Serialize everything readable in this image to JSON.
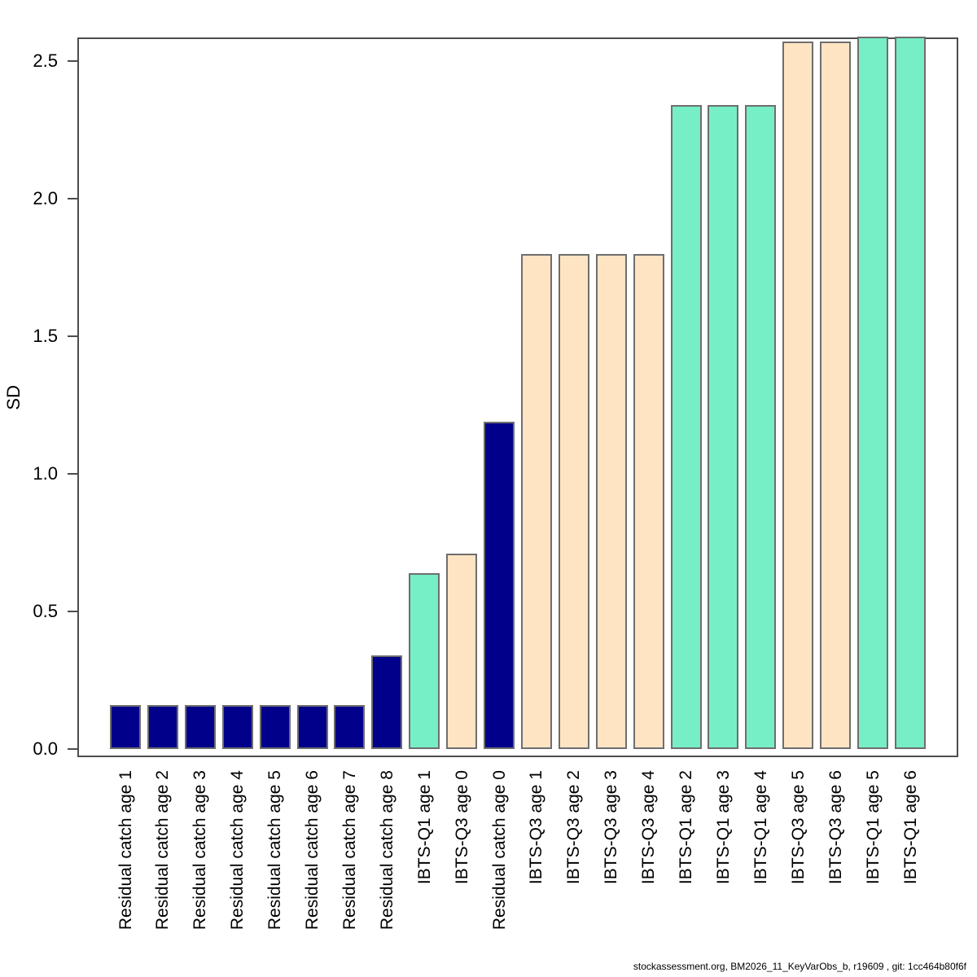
{
  "chart_data": {
    "type": "bar",
    "title": "",
    "xlabel": "",
    "ylabel": "SD",
    "ylim": [
      0,
      2.59
    ],
    "yticks": [
      "0.0",
      "0.5",
      "1.0",
      "1.5",
      "2.0",
      "2.5"
    ],
    "grid": false,
    "legend": false,
    "fleets": [
      {
        "name": "Residual catch",
        "color": "#00008B"
      },
      {
        "name": "IBTS-Q1",
        "color": "#76EEC6"
      },
      {
        "name": "IBTS-Q3",
        "color": "#FFE4C4"
      }
    ],
    "bars": [
      {
        "label": "Residual catch age 1",
        "fleet": "Residual catch",
        "value": 0.16
      },
      {
        "label": "Residual catch age 2",
        "fleet": "Residual catch",
        "value": 0.16
      },
      {
        "label": "Residual catch age 3",
        "fleet": "Residual catch",
        "value": 0.16
      },
      {
        "label": "Residual catch age 4",
        "fleet": "Residual catch",
        "value": 0.16
      },
      {
        "label": "Residual catch age 5",
        "fleet": "Residual catch",
        "value": 0.16
      },
      {
        "label": "Residual catch age 6",
        "fleet": "Residual catch",
        "value": 0.16
      },
      {
        "label": "Residual catch age 7",
        "fleet": "Residual catch",
        "value": 0.16
      },
      {
        "label": "Residual catch age 8",
        "fleet": "Residual catch",
        "value": 0.34
      },
      {
        "label": "IBTS-Q1 age 1",
        "fleet": "IBTS-Q1",
        "value": 0.64
      },
      {
        "label": "IBTS-Q3 age 0",
        "fleet": "IBTS-Q3",
        "value": 0.71
      },
      {
        "label": "Residual catch age 0",
        "fleet": "Residual catch",
        "value": 1.19
      },
      {
        "label": "IBTS-Q3 age 1",
        "fleet": "IBTS-Q3",
        "value": 1.8
      },
      {
        "label": "IBTS-Q3 age 2",
        "fleet": "IBTS-Q3",
        "value": 1.8
      },
      {
        "label": "IBTS-Q3 age 3",
        "fleet": "IBTS-Q3",
        "value": 1.8
      },
      {
        "label": "IBTS-Q3 age 4",
        "fleet": "IBTS-Q3",
        "value": 1.8
      },
      {
        "label": "IBTS-Q1 age 2",
        "fleet": "IBTS-Q1",
        "value": 2.34
      },
      {
        "label": "IBTS-Q1 age 3",
        "fleet": "IBTS-Q1",
        "value": 2.34
      },
      {
        "label": "IBTS-Q1 age 4",
        "fleet": "IBTS-Q1",
        "value": 2.34
      },
      {
        "label": "IBTS-Q3 age 5",
        "fleet": "IBTS-Q3",
        "value": 2.57
      },
      {
        "label": "IBTS-Q3 age 6",
        "fleet": "IBTS-Q3",
        "value": 2.57
      },
      {
        "label": "IBTS-Q1 age 5",
        "fleet": "IBTS-Q1",
        "value": 2.59
      },
      {
        "label": "IBTS-Q1 age 6",
        "fleet": "IBTS-Q1",
        "value": 2.59
      }
    ],
    "footer": "stockassessment.org, BM2026_11_KeyVarObs_b, r19609 , git: 1cc464b80f6f"
  }
}
